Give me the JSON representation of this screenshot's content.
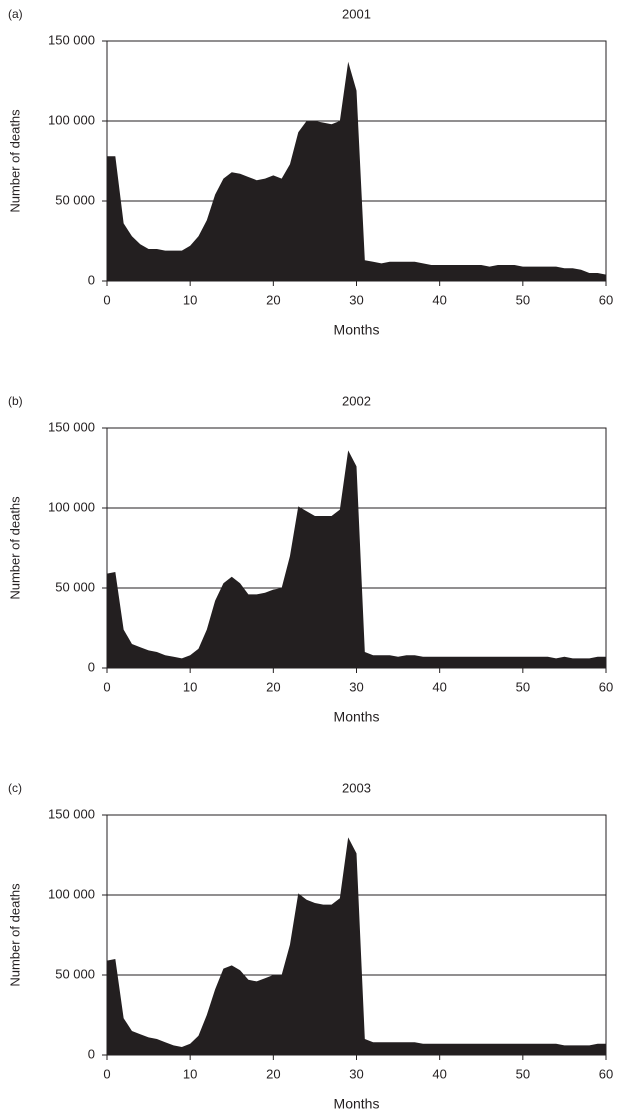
{
  "chart_data": [
    {
      "type": "area",
      "panel_label": "(a)",
      "title": "2001",
      "xlabel": "Months",
      "ylabel": "Number of deaths",
      "color": "#231f20",
      "grid": true,
      "x": [
        0,
        1,
        2,
        3,
        4,
        5,
        6,
        7,
        8,
        9,
        10,
        11,
        12,
        13,
        14,
        15,
        16,
        17,
        18,
        19,
        20,
        21,
        22,
        23,
        24,
        25,
        26,
        27,
        28,
        29,
        30,
        31,
        32,
        33,
        34,
        35,
        36,
        37,
        38,
        39,
        40,
        41,
        42,
        43,
        44,
        45,
        46,
        47,
        48,
        49,
        50,
        51,
        52,
        53,
        54,
        55,
        56,
        57,
        58,
        59,
        60
      ],
      "values": [
        78000,
        78000,
        36000,
        28000,
        23000,
        20000,
        20000,
        19000,
        19000,
        19000,
        22000,
        28000,
        38000,
        54000,
        64000,
        68000,
        67000,
        65000,
        63000,
        64000,
        66000,
        64000,
        73000,
        93000,
        100000,
        100000,
        99000,
        98000,
        100000,
        137000,
        119000,
        13000,
        12000,
        11000,
        12000,
        12000,
        12000,
        12000,
        11000,
        10000,
        10000,
        10000,
        10000,
        10000,
        10000,
        10000,
        9000,
        10000,
        10000,
        10000,
        9000,
        9000,
        9000,
        9000,
        9000,
        8000,
        8000,
        7000,
        5000,
        5000,
        4000
      ],
      "xlim": [
        0,
        60
      ],
      "xticks": [
        0,
        10,
        20,
        30,
        40,
        50,
        60
      ],
      "ylim": [
        0,
        150000
      ],
      "yticks": [
        0,
        {
          "value": 50000,
          "label": "50 000"
        },
        {
          "value": 100000,
          "label": "100 000"
        },
        {
          "value": 150000,
          "label": "150 000"
        }
      ]
    },
    {
      "type": "area",
      "panel_label": "(b)",
      "title": "2002",
      "xlabel": "Months",
      "ylabel": "Number of deaths",
      "color": "#231f20",
      "grid": true,
      "x": [
        0,
        1,
        2,
        3,
        4,
        5,
        6,
        7,
        8,
        9,
        10,
        11,
        12,
        13,
        14,
        15,
        16,
        17,
        18,
        19,
        20,
        21,
        22,
        23,
        24,
        25,
        26,
        27,
        28,
        29,
        30,
        31,
        32,
        33,
        34,
        35,
        36,
        37,
        38,
        39,
        40,
        41,
        42,
        43,
        44,
        45,
        46,
        47,
        48,
        49,
        50,
        51,
        52,
        53,
        54,
        55,
        56,
        57,
        58,
        59,
        60
      ],
      "values": [
        59000,
        60000,
        24000,
        15000,
        13000,
        11000,
        10000,
        8000,
        7000,
        6000,
        8000,
        12000,
        24000,
        42000,
        53000,
        57000,
        53000,
        46000,
        46000,
        47000,
        49000,
        50000,
        70000,
        101000,
        98000,
        95000,
        95000,
        95000,
        99000,
        136000,
        126000,
        10000,
        8000,
        8000,
        8000,
        7000,
        8000,
        8000,
        7000,
        7000,
        7000,
        7000,
        7000,
        7000,
        7000,
        7000,
        7000,
        7000,
        7000,
        7000,
        7000,
        7000,
        7000,
        7000,
        6000,
        7000,
        6000,
        6000,
        6000,
        7000,
        7000
      ],
      "xlim": [
        0,
        60
      ],
      "xticks": [
        0,
        10,
        20,
        30,
        40,
        50,
        60
      ],
      "ylim": [
        0,
        150000
      ],
      "yticks": [
        0,
        {
          "value": 50000,
          "label": "50 000"
        },
        {
          "value": 100000,
          "label": "100 000"
        },
        {
          "value": 150000,
          "label": "150 000"
        }
      ]
    },
    {
      "type": "area",
      "panel_label": "(c)",
      "title": "2003",
      "xlabel": "Months",
      "ylabel": "Number of deaths",
      "color": "#231f20",
      "grid": true,
      "x": [
        0,
        1,
        2,
        3,
        4,
        5,
        6,
        7,
        8,
        9,
        10,
        11,
        12,
        13,
        14,
        15,
        16,
        17,
        18,
        19,
        20,
        21,
        22,
        23,
        24,
        25,
        26,
        27,
        28,
        29,
        30,
        31,
        32,
        33,
        34,
        35,
        36,
        37,
        38,
        39,
        40,
        41,
        42,
        43,
        44,
        45,
        46,
        47,
        48,
        49,
        50,
        51,
        52,
        53,
        54,
        55,
        56,
        57,
        58,
        59,
        60
      ],
      "values": [
        59000,
        60000,
        23000,
        15000,
        13000,
        11000,
        10000,
        8000,
        6000,
        5000,
        7000,
        12000,
        25000,
        41000,
        54000,
        56000,
        53000,
        47000,
        46000,
        48000,
        50000,
        50000,
        69000,
        101000,
        97000,
        95000,
        94000,
        94000,
        98000,
        136000,
        126000,
        10000,
        8000,
        8000,
        8000,
        8000,
        8000,
        8000,
        7000,
        7000,
        7000,
        7000,
        7000,
        7000,
        7000,
        7000,
        7000,
        7000,
        7000,
        7000,
        7000,
        7000,
        7000,
        7000,
        7000,
        6000,
        6000,
        6000,
        6000,
        7000,
        7000
      ],
      "xlim": [
        0,
        60
      ],
      "xticks": [
        0,
        10,
        20,
        30,
        40,
        50,
        60
      ],
      "ylim": [
        0,
        150000
      ],
      "yticks": [
        0,
        {
          "value": 50000,
          "label": "50 000"
        },
        {
          "value": 100000,
          "label": "100 000"
        },
        {
          "value": 150000,
          "label": "150 000"
        }
      ]
    }
  ]
}
